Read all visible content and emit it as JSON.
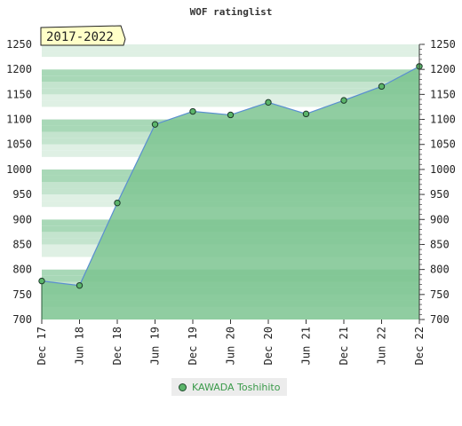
{
  "chart_data": {
    "type": "area",
    "title": "WOF ratinglist",
    "badge": "2017-2022",
    "x": [
      "Dec 17",
      "Jun 18",
      "Dec 18",
      "Jun 19",
      "Dec 19",
      "Jun 20",
      "Dec 20",
      "Jun 21",
      "Dec 21",
      "Jun 22",
      "Dec 22"
    ],
    "series": [
      {
        "name": "KAWADA Toshihito",
        "values": [
          777,
          768,
          933,
          1090,
          1116,
          1109,
          1134,
          1111,
          1138,
          1166,
          1206
        ]
      }
    ],
    "ylim": [
      700,
      1250
    ],
    "yticks": [
      700,
      750,
      800,
      850,
      900,
      950,
      1000,
      1050,
      1100,
      1150,
      1200,
      1250
    ],
    "xlabel": "",
    "ylabel": "",
    "legend_position": "bottom-center",
    "colors": {
      "line": "#5a8fd0",
      "area": "#7cc490",
      "marker": "#5bb56a",
      "legend_text": "#3a9a4a",
      "badge_bg": "#ffffc8"
    }
  }
}
